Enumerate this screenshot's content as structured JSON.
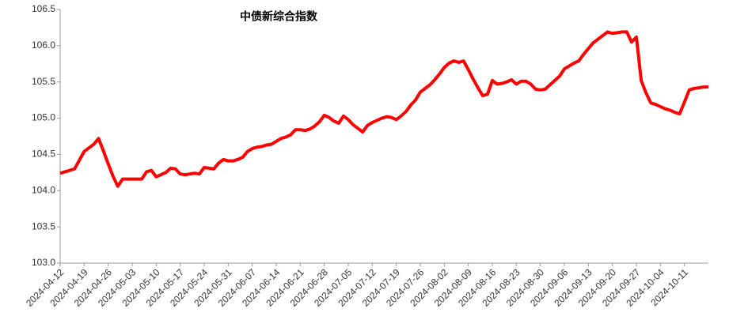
{
  "chart_data": {
    "type": "line",
    "title": "中债新综合指数",
    "categories": [
      "2024-04-12",
      null,
      null,
      null,
      null,
      "2024-04-19",
      null,
      null,
      null,
      null,
      "2024-04-26",
      null,
      null,
      null,
      null,
      "2024-05-03",
      null,
      null,
      null,
      null,
      "2024-05-10",
      null,
      null,
      null,
      null,
      "2024-05-17",
      null,
      null,
      null,
      null,
      "2024-05-24",
      null,
      null,
      null,
      null,
      "2024-05-31",
      null,
      null,
      null,
      null,
      "2024-06-07",
      null,
      null,
      null,
      null,
      "2024-06-14",
      null,
      null,
      null,
      null,
      "2024-06-21",
      null,
      null,
      null,
      null,
      "2024-06-28",
      null,
      null,
      null,
      null,
      "2024-07-05",
      null,
      null,
      null,
      null,
      "2024-07-12",
      null,
      null,
      null,
      null,
      "2024-07-19",
      null,
      null,
      null,
      null,
      "2024-07-26",
      null,
      null,
      null,
      null,
      "2024-08-02",
      null,
      null,
      null,
      null,
      "2024-08-09",
      null,
      null,
      null,
      null,
      "2024-08-16",
      null,
      null,
      null,
      null,
      "2024-08-23",
      null,
      null,
      null,
      null,
      "2024-08-30",
      null,
      null,
      null,
      null,
      "2024-09-06",
      null,
      null,
      null,
      null,
      "2024-09-13",
      null,
      null,
      null,
      null,
      "2024-09-20",
      null,
      null,
      null,
      null,
      "2024-09-27",
      null,
      null,
      null,
      null,
      "2024-10-04",
      null,
      null,
      null,
      null,
      "2024-10-11",
      null,
      null,
      null,
      null,
      null
    ],
    "series": [
      {
        "name": "中债新综合指数",
        "color": "#ff0000",
        "values": [
          104.24,
          104.26,
          104.28,
          104.3,
          104.42,
          104.54,
          104.59,
          104.64,
          104.72,
          104.55,
          104.37,
          104.2,
          104.06,
          104.16,
          104.16,
          104.16,
          104.16,
          104.16,
          104.26,
          104.28,
          104.19,
          104.22,
          104.25,
          104.31,
          104.3,
          104.23,
          104.22,
          104.23,
          104.24,
          104.23,
          104.32,
          104.31,
          104.3,
          104.38,
          104.43,
          104.41,
          104.41,
          104.43,
          104.46,
          104.54,
          104.58,
          104.6,
          104.61,
          104.63,
          104.64,
          104.68,
          104.72,
          104.74,
          104.77,
          104.84,
          104.84,
          104.83,
          104.85,
          104.89,
          104.95,
          105.04,
          105.01,
          104.96,
          104.93,
          105.03,
          104.98,
          104.91,
          104.86,
          104.81,
          104.9,
          104.94,
          104.97,
          105.0,
          105.02,
          105.01,
          104.98,
          105.03,
          105.09,
          105.18,
          105.25,
          105.36,
          105.41,
          105.46,
          105.53,
          105.61,
          105.7,
          105.76,
          105.79,
          105.77,
          105.79,
          105.67,
          105.54,
          105.42,
          105.31,
          105.33,
          105.52,
          105.47,
          105.48,
          105.5,
          105.53,
          105.47,
          105.51,
          105.51,
          105.47,
          105.4,
          105.39,
          105.4,
          105.46,
          105.52,
          105.58,
          105.68,
          105.72,
          105.76,
          105.79,
          105.88,
          105.96,
          106.04,
          106.09,
          106.14,
          106.19,
          106.17,
          106.18,
          106.19,
          106.19,
          106.05,
          106.12,
          105.52,
          105.35,
          105.21,
          105.19,
          105.16,
          105.13,
          105.11,
          105.08,
          105.06,
          105.22,
          105.39,
          105.41,
          105.42,
          105.43,
          105.43
        ]
      }
    ],
    "ylim": [
      103.0,
      106.5
    ],
    "yticks": [
      {
        "value": 103.0,
        "label": "103.0"
      },
      103.5,
      {
        "value": 104.0,
        "label": "104.0"
      },
      104.5,
      {
        "value": 105.0,
        "label": "105.0"
      },
      105.5,
      {
        "value": 106.0,
        "label": "106.0"
      },
      106.5
    ],
    "grid": false
  }
}
